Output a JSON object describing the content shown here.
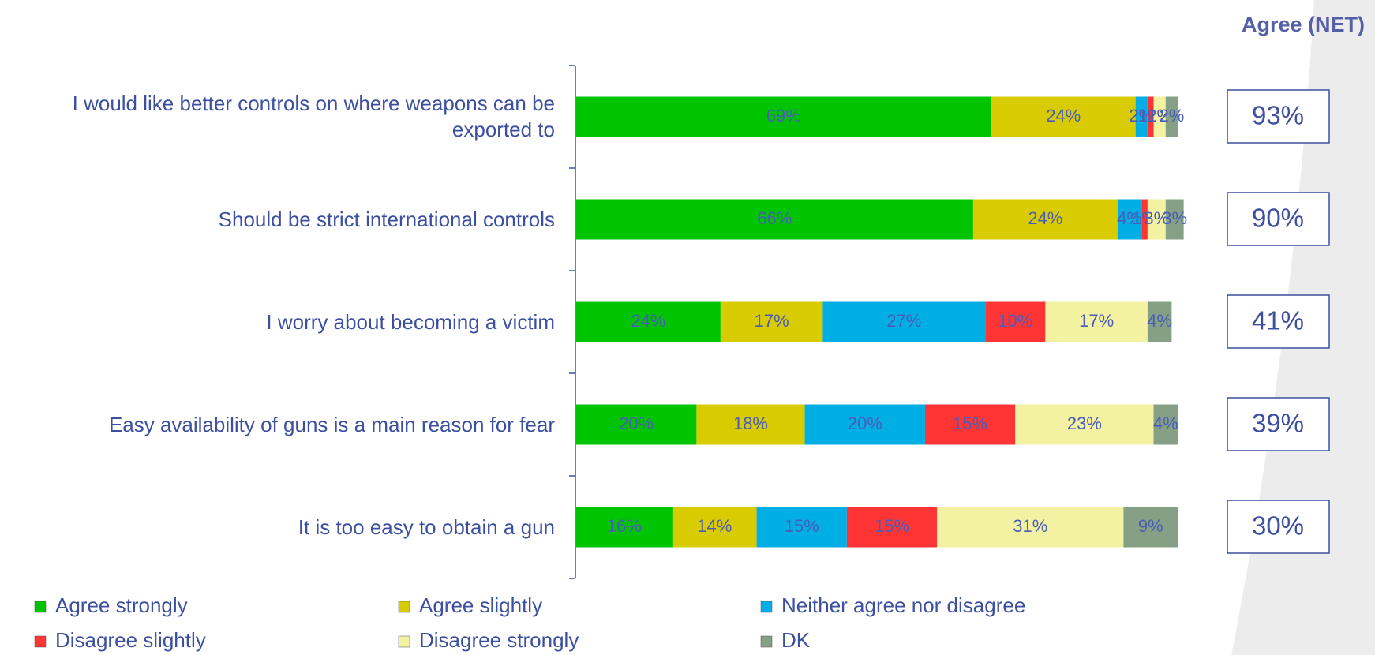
{
  "chart_data": {
    "type": "stacked-bar-horizontal",
    "categories": [
      "I would like better controls on where weapons can be exported to",
      "Should be strict international controls",
      "I worry about becoming a victim",
      "Easy availability of guns is a main reason for fear",
      "It is too easy to obtain a gun"
    ],
    "xlim": [
      0,
      100
    ],
    "series": [
      {
        "name": "Agree strongly",
        "color": "#00c400",
        "values": [
          69,
          66,
          24,
          20,
          16
        ],
        "value_labels": [
          "69%",
          "66%",
          "24%",
          "20%",
          "16%"
        ]
      },
      {
        "name": "Agree slightly",
        "color": "#d8cc00",
        "values": [
          24,
          24,
          17,
          18,
          14
        ],
        "value_labels": [
          "24%",
          "24%",
          "17%",
          "18%",
          "14%"
        ]
      },
      {
        "name": "Neither agree nor disagree",
        "color": "#00aee6",
        "values": [
          2,
          4,
          27,
          20,
          15
        ],
        "value_labels": [
          "2%",
          "4%",
          "27%",
          "20%",
          "15%"
        ]
      },
      {
        "name": "Disagree slightly",
        "color": "#ff3535",
        "values": [
          1,
          1,
          10,
          15,
          15
        ],
        "value_labels": [
          "1%",
          "1%",
          "10%",
          "15%",
          "15%"
        ]
      },
      {
        "name": "Disagree strongly",
        "color": "#f3f1a2",
        "values": [
          2,
          3,
          17,
          23,
          31
        ],
        "value_labels": [
          "2%",
          "3%",
          "17%",
          "23%",
          "31%"
        ]
      },
      {
        "name": "DK",
        "color": "#85a085",
        "values": [
          2,
          3,
          4,
          4,
          9
        ],
        "value_labels": [
          "2%",
          "3%",
          "4%",
          "4%",
          "9%"
        ]
      }
    ],
    "net": {
      "title": "Agree (NET)",
      "values": [
        93,
        90,
        41,
        39,
        30
      ],
      "value_labels": [
        "93%",
        "90%",
        "41%",
        "39%",
        "30%"
      ]
    }
  }
}
